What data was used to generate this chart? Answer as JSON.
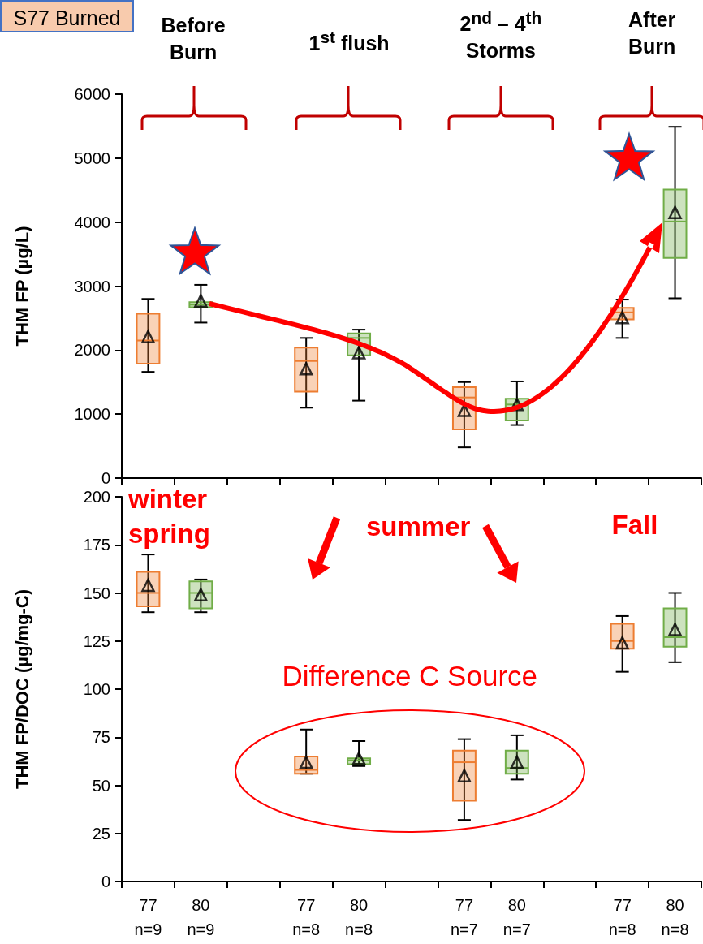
{
  "chart_data": [
    {
      "type": "box",
      "title": "S77 Burned",
      "ylabel": "THM FP (µg/L)",
      "ylim": [
        0,
        6000
      ],
      "yticks": [
        0,
        1000,
        2000,
        3000,
        4000,
        5000,
        6000
      ],
      "tick_labels": "y",
      "annotations": [
        "Before\nBurn",
        "1$^{st}$ flush",
        "2$^{nd}$ – 4$^{th}$\nStorms",
        "After\nBurn"
      ],
      "series": [
        {
          "color": "#ed7d31",
          "boxes": [
            {
              "low": 1660,
              "q1": 1790,
              "median": 2150,
              "q3": 2570,
              "high": 2800,
              "mean": 2210
            },
            null,
            null,
            {
              "low": 1100,
              "q1": 1350,
              "median": 1830,
              "q3": 2040,
              "high": 2190,
              "mean": 1710
            },
            null,
            null,
            {
              "low": 480,
              "q1": 760,
              "median": 1260,
              "q3": 1420,
              "high": 1500,
              "mean": 1060
            },
            null,
            null,
            {
              "low": 2190,
              "q1": 2480,
              "median": 2590,
              "q3": 2660,
              "high": 2790,
              "mean": 2510
            },
            null
          ]
        },
        {
          "color": "#70ad47",
          "boxes": [
            null,
            {
              "low": 2430,
              "q1": 2670,
              "median": 2710,
              "q3": 2750,
              "high": 3020,
              "mean": 2770
            },
            null,
            null,
            {
              "low": 1210,
              "q1": 1920,
              "median": 2190,
              "q3": 2260,
              "high": 2320,
              "mean": 1960
            },
            null,
            null,
            {
              "low": 830,
              "q1": 900,
              "median": 1150,
              "q3": 1240,
              "high": 1510,
              "mean": 1150
            },
            null,
            null,
            {
              "low": 2810,
              "q1": 3440,
              "median": 4010,
              "q3": 4510,
              "high": 5490,
              "mean": 4150
            }
          ]
        }
      ]
    },
    {
      "type": "box",
      "ylabel": "THM FP/DOC (µg/mg-C)",
      "categories": [
        "77\nn=9",
        "80\nn=9",
        null,
        "77\nn=8",
        "80\nn=8",
        null,
        "77\nn=7",
        "80\nn=7",
        null,
        "77\nn=8",
        "80\nn=8"
      ],
      "ylim": [
        0,
        200
      ],
      "yticks": [
        0,
        25,
        50,
        75,
        100,
        125,
        150,
        175,
        200
      ],
      "annotations": [
        "winter\nspring",
        "summer",
        "Fall",
        "Difference C Source"
      ],
      "series": [
        {
          "color": "#ed7d31",
          "boxes": [
            {
              "low": 140,
              "q1": 143,
              "median": 150,
              "q3": 161,
              "high": 170,
              "mean": 154
            },
            null,
            null,
            {
              "low": 56,
              "q1": 56,
              "median": 58,
              "q3": 65,
              "high": 79,
              "mean": 62
            },
            null,
            null,
            {
              "low": 32,
              "q1": 42,
              "median": 62,
              "q3": 68,
              "high": 74,
              "mean": 55
            },
            null,
            null,
            {
              "low": 109,
              "q1": 121,
              "median": 125,
              "q3": 134,
              "high": 138,
              "mean": 124
            },
            null
          ]
        },
        {
          "color": "#70ad47",
          "boxes": [
            null,
            {
              "low": 140,
              "q1": 142,
              "median": 150,
              "q3": 156,
              "high": 157,
              "mean": 149
            },
            null,
            null,
            {
              "low": 60,
              "q1": 61,
              "median": 63,
              "q3": 64,
              "high": 73,
              "mean": 64
            },
            null,
            null,
            {
              "low": 53,
              "q1": 56,
              "median": 59,
              "q3": 68,
              "high": 76,
              "mean": 62
            },
            null,
            null,
            {
              "low": 114,
              "q1": 122,
              "median": 127,
              "q3": 142,
              "high": 150,
              "mean": 131
            }
          ]
        }
      ]
    }
  ]
}
